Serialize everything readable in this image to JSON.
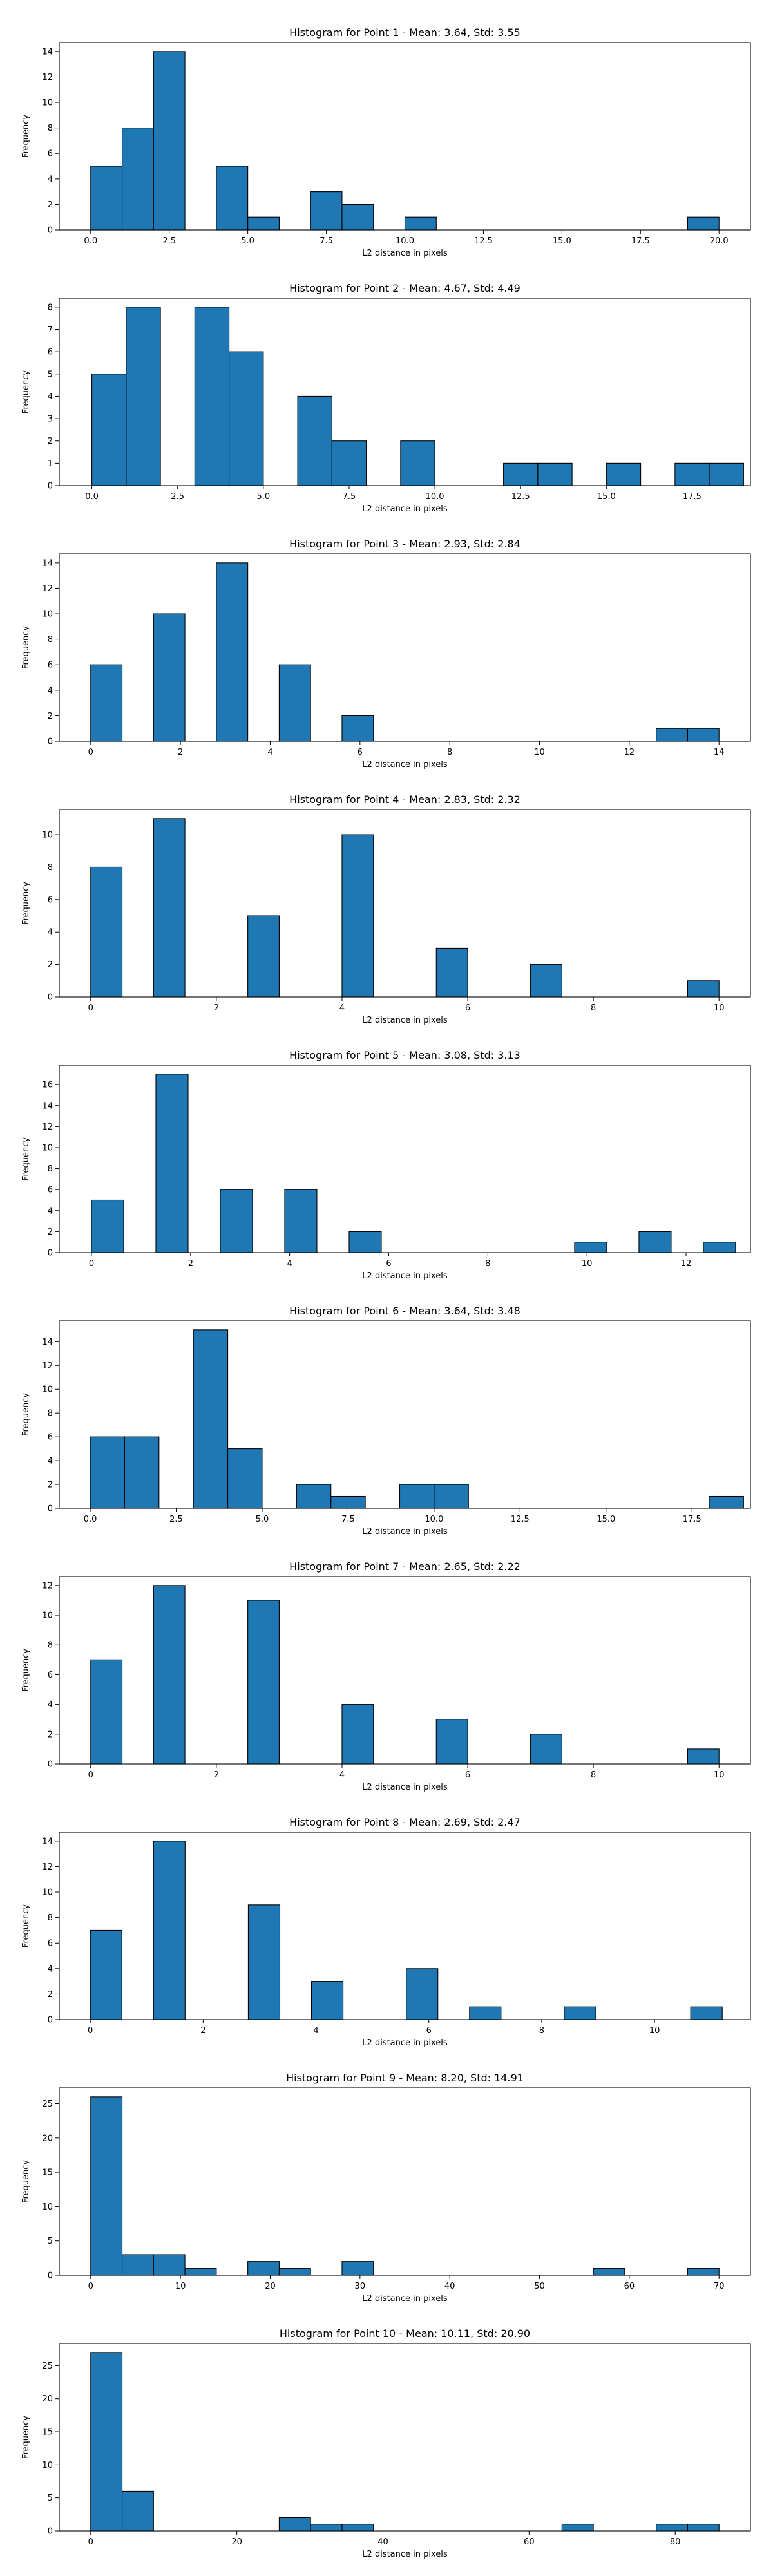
{
  "chart_data": [
    {
      "type": "bar",
      "title": "Histogram for Point 1 - Mean: 3.64, Std: 3.55",
      "xlabel": "L2 distance in pixels",
      "ylabel": "Frequency",
      "xlim": [
        -1.0,
        21.0
      ],
      "ylim": [
        0,
        14.7
      ],
      "xticks": [
        "0.0",
        "2.5",
        "5.0",
        "7.5",
        "10.0",
        "12.5",
        "15.0",
        "17.5",
        "20.0"
      ],
      "xtick_values": [
        0,
        2.5,
        5,
        7.5,
        10,
        12.5,
        15,
        17.5,
        20
      ],
      "yticks": [
        0,
        2,
        4,
        6,
        8,
        10,
        12,
        14
      ],
      "bars": [
        {
          "x0": 0.0,
          "x1": 1.0,
          "value": 5
        },
        {
          "x0": 1.0,
          "x1": 2.0,
          "value": 8
        },
        {
          "x0": 2.0,
          "x1": 3.0,
          "value": 14
        },
        {
          "x0": 4.0,
          "x1": 5.0,
          "value": 5
        },
        {
          "x0": 5.0,
          "x1": 6.0,
          "value": 1
        },
        {
          "x0": 7.0,
          "x1": 8.0,
          "value": 3
        },
        {
          "x0": 8.0,
          "x1": 9.0,
          "value": 2
        },
        {
          "x0": 10.0,
          "x1": 11.0,
          "value": 1
        },
        {
          "x0": 19.0,
          "x1": 20.0,
          "value": 1
        }
      ]
    },
    {
      "type": "bar",
      "title": "Histogram for Point 2 - Mean: 4.67, Std: 4.49",
      "xlabel": "L2 distance in pixels",
      "ylabel": "Frequency",
      "xlim": [
        -0.95,
        19.2
      ],
      "ylim": [
        0,
        8.4
      ],
      "xticks": [
        "0.0",
        "2.5",
        "5.0",
        "7.5",
        "10.0",
        "12.5",
        "15.0",
        "17.5"
      ],
      "xtick_values": [
        0,
        2.5,
        5,
        7.5,
        10,
        12.5,
        15,
        17.5
      ],
      "yticks": [
        0,
        1,
        2,
        3,
        4,
        5,
        6,
        7,
        8
      ],
      "bars": [
        {
          "x0": 0.0,
          "x1": 1.0,
          "value": 5
        },
        {
          "x0": 1.0,
          "x1": 2.0,
          "value": 8
        },
        {
          "x0": 3.0,
          "x1": 4.0,
          "value": 8
        },
        {
          "x0": 4.0,
          "x1": 5.0,
          "value": 6
        },
        {
          "x0": 6.0,
          "x1": 7.0,
          "value": 4
        },
        {
          "x0": 7.0,
          "x1": 8.0,
          "value": 2
        },
        {
          "x0": 9.0,
          "x1": 10.0,
          "value": 2
        },
        {
          "x0": 12.0,
          "x1": 13.0,
          "value": 1
        },
        {
          "x0": 13.0,
          "x1": 14.0,
          "value": 1
        },
        {
          "x0": 15.0,
          "x1": 16.0,
          "value": 1
        },
        {
          "x0": 17.0,
          "x1": 18.0,
          "value": 1
        },
        {
          "x0": 18.0,
          "x1": 19.0,
          "value": 1
        }
      ]
    },
    {
      "type": "bar",
      "title": "Histogram for Point 3 - Mean: 2.93, Std: 2.84",
      "xlabel": "L2 distance in pixels",
      "ylabel": "Frequency",
      "xlim": [
        -0.7,
        14.7
      ],
      "ylim": [
        0,
        14.7
      ],
      "xticks": [
        "0",
        "2",
        "4",
        "6",
        "8",
        "10",
        "12",
        "14"
      ],
      "xtick_values": [
        0,
        2,
        4,
        6,
        8,
        10,
        12,
        14
      ],
      "yticks": [
        0,
        2,
        4,
        6,
        8,
        10,
        12,
        14
      ],
      "bars": [
        {
          "x0": 0.0,
          "x1": 0.7,
          "value": 6
        },
        {
          "x0": 1.4,
          "x1": 2.1,
          "value": 10
        },
        {
          "x0": 2.8,
          "x1": 3.5,
          "value": 14
        },
        {
          "x0": 4.2,
          "x1": 4.9,
          "value": 6
        },
        {
          "x0": 5.6,
          "x1": 6.3,
          "value": 2
        },
        {
          "x0": 12.6,
          "x1": 13.3,
          "value": 1
        },
        {
          "x0": 13.3,
          "x1": 14.0,
          "value": 1
        }
      ]
    },
    {
      "type": "bar",
      "title": "Histogram for Point 4 - Mean: 2.83, Std: 2.32",
      "xlabel": "L2 distance in pixels",
      "ylabel": "Frequency",
      "xlim": [
        -0.5,
        10.5
      ],
      "ylim": [
        0,
        11.55
      ],
      "xticks": [
        "0",
        "2",
        "4",
        "6",
        "8",
        "10"
      ],
      "xtick_values": [
        0,
        2,
        4,
        6,
        8,
        10
      ],
      "yticks": [
        0,
        2,
        4,
        6,
        8,
        10
      ],
      "bars": [
        {
          "x0": 0.0,
          "x1": 0.5,
          "value": 8
        },
        {
          "x0": 1.0,
          "x1": 1.5,
          "value": 11
        },
        {
          "x0": 2.5,
          "x1": 3.0,
          "value": 5
        },
        {
          "x0": 4.0,
          "x1": 4.5,
          "value": 10
        },
        {
          "x0": 5.5,
          "x1": 6.0,
          "value": 3
        },
        {
          "x0": 7.0,
          "x1": 7.5,
          "value": 2
        },
        {
          "x0": 9.5,
          "x1": 10.0,
          "value": 1
        }
      ]
    },
    {
      "type": "bar",
      "title": "Histogram for Point 5 - Mean: 3.08, Std: 3.13",
      "xlabel": "L2 distance in pixels",
      "ylabel": "Frequency",
      "xlim": [
        -0.65,
        13.3
      ],
      "ylim": [
        0,
        17.85
      ],
      "xticks": [
        "0",
        "2",
        "4",
        "6",
        "8",
        "10",
        "12"
      ],
      "xtick_values": [
        0,
        2,
        4,
        6,
        8,
        10,
        12
      ],
      "yticks": [
        0,
        2,
        4,
        6,
        8,
        10,
        12,
        14,
        16
      ],
      "bars": [
        {
          "x0": 0.0,
          "x1": 0.65,
          "value": 5
        },
        {
          "x0": 1.3,
          "x1": 1.95,
          "value": 17
        },
        {
          "x0": 2.6,
          "x1": 3.25,
          "value": 6
        },
        {
          "x0": 3.9,
          "x1": 4.55,
          "value": 6
        },
        {
          "x0": 5.2,
          "x1": 5.85,
          "value": 2
        },
        {
          "x0": 9.75,
          "x1": 10.4,
          "value": 1
        },
        {
          "x0": 11.05,
          "x1": 11.7,
          "value": 2
        },
        {
          "x0": 12.35,
          "x1": 13.0,
          "value": 1
        }
      ]
    },
    {
      "type": "bar",
      "title": "Histogram for Point 6 - Mean: 3.64, Std: 3.48",
      "xlabel": "L2 distance in pixels",
      "ylabel": "Frequency",
      "xlim": [
        -0.9,
        19.2
      ],
      "ylim": [
        0,
        15.75
      ],
      "xticks": [
        "0.0",
        "2.5",
        "5.0",
        "7.5",
        "10.0",
        "12.5",
        "15.0",
        "17.5"
      ],
      "xtick_values": [
        0,
        2.5,
        5,
        7.5,
        10,
        12.5,
        15,
        17.5
      ],
      "yticks": [
        0,
        2,
        4,
        6,
        8,
        10,
        12,
        14
      ],
      "bars": [
        {
          "x0": 0.0,
          "x1": 1.0,
          "value": 6
        },
        {
          "x0": 1.0,
          "x1": 2.0,
          "value": 6
        },
        {
          "x0": 3.0,
          "x1": 4.0,
          "value": 15
        },
        {
          "x0": 4.0,
          "x1": 5.0,
          "value": 5
        },
        {
          "x0": 6.0,
          "x1": 7.0,
          "value": 2
        },
        {
          "x0": 7.0,
          "x1": 8.0,
          "value": 1
        },
        {
          "x0": 9.0,
          "x1": 10.0,
          "value": 2
        },
        {
          "x0": 10.0,
          "x1": 11.0,
          "value": 2
        },
        {
          "x0": 18.0,
          "x1": 19.0,
          "value": 1
        }
      ]
    },
    {
      "type": "bar",
      "title": "Histogram for Point 7 - Mean: 2.65, Std: 2.22",
      "xlabel": "L2 distance in pixels",
      "ylabel": "Frequency",
      "xlim": [
        -0.5,
        10.5
      ],
      "ylim": [
        0,
        12.6
      ],
      "xticks": [
        "0",
        "2",
        "4",
        "6",
        "8",
        "10"
      ],
      "xtick_values": [
        0,
        2,
        4,
        6,
        8,
        10
      ],
      "yticks": [
        0,
        2,
        4,
        6,
        8,
        10,
        12
      ],
      "bars": [
        {
          "x0": 0.0,
          "x1": 0.5,
          "value": 7
        },
        {
          "x0": 1.0,
          "x1": 1.5,
          "value": 12
        },
        {
          "x0": 2.5,
          "x1": 3.0,
          "value": 11
        },
        {
          "x0": 4.0,
          "x1": 4.5,
          "value": 4
        },
        {
          "x0": 5.5,
          "x1": 6.0,
          "value": 3
        },
        {
          "x0": 7.0,
          "x1": 7.5,
          "value": 2
        },
        {
          "x0": 9.5,
          "x1": 10.0,
          "value": 1
        }
      ]
    },
    {
      "type": "bar",
      "title": "Histogram for Point 8 - Mean: 2.69, Std: 2.47",
      "xlabel": "L2 distance in pixels",
      "ylabel": "Frequency",
      "xlim": [
        -0.55,
        11.7
      ],
      "ylim": [
        0,
        14.7
      ],
      "xticks": [
        "0",
        "2",
        "4",
        "6",
        "8",
        "10"
      ],
      "xtick_values": [
        0,
        2,
        4,
        6,
        8,
        10
      ],
      "yticks": [
        0,
        2,
        4,
        6,
        8,
        10,
        12,
        14
      ],
      "bars": [
        {
          "x0": 0.0,
          "x1": 0.56,
          "value": 7
        },
        {
          "x0": 1.12,
          "x1": 1.68,
          "value": 14
        },
        {
          "x0": 2.8,
          "x1": 3.36,
          "value": 9
        },
        {
          "x0": 3.92,
          "x1": 4.48,
          "value": 3
        },
        {
          "x0": 5.6,
          "x1": 6.16,
          "value": 4
        },
        {
          "x0": 6.72,
          "x1": 7.28,
          "value": 1
        },
        {
          "x0": 8.4,
          "x1": 8.96,
          "value": 1
        },
        {
          "x0": 10.64,
          "x1": 11.2,
          "value": 1
        }
      ]
    },
    {
      "type": "bar",
      "title": "Histogram for Point 9 - Mean: 8.20, Std: 14.91",
      "xlabel": "L2 distance in pixels",
      "ylabel": "Frequency",
      "xlim": [
        -3.5,
        73.5
      ],
      "ylim": [
        0,
        27.3
      ],
      "xticks": [
        "0",
        "10",
        "20",
        "30",
        "40",
        "50",
        "60",
        "70"
      ],
      "xtick_values": [
        0,
        10,
        20,
        30,
        40,
        50,
        60,
        70
      ],
      "yticks": [
        0,
        5,
        10,
        15,
        20,
        25
      ],
      "bars": [
        {
          "x0": 0.0,
          "x1": 3.5,
          "value": 26
        },
        {
          "x0": 3.5,
          "x1": 7.0,
          "value": 3
        },
        {
          "x0": 7.0,
          "x1": 10.5,
          "value": 3
        },
        {
          "x0": 10.5,
          "x1": 14.0,
          "value": 1
        },
        {
          "x0": 17.5,
          "x1": 21.0,
          "value": 2
        },
        {
          "x0": 21.0,
          "x1": 24.5,
          "value": 1
        },
        {
          "x0": 28.0,
          "x1": 31.5,
          "value": 2
        },
        {
          "x0": 56.0,
          "x1": 59.5,
          "value": 1
        },
        {
          "x0": 66.5,
          "x1": 70.0,
          "value": 1
        }
      ]
    },
    {
      "type": "bar",
      "title": "Histogram for Point 10 - Mean: 10.11, Std: 20.90",
      "xlabel": "L2 distance in pixels",
      "ylabel": "Frequency",
      "xlim": [
        -4.3,
        90.3
      ],
      "ylim": [
        0,
        28.35
      ],
      "xticks": [
        "0",
        "20",
        "40",
        "60",
        "80"
      ],
      "xtick_values": [
        0,
        20,
        40,
        60,
        80
      ],
      "yticks": [
        0,
        5,
        10,
        15,
        20,
        25
      ],
      "bars": [
        {
          "x0": 0.0,
          "x1": 4.3,
          "value": 27
        },
        {
          "x0": 4.3,
          "x1": 8.6,
          "value": 6
        },
        {
          "x0": 25.8,
          "x1": 30.1,
          "value": 2
        },
        {
          "x0": 30.1,
          "x1": 34.4,
          "value": 1
        },
        {
          "x0": 34.4,
          "x1": 38.7,
          "value": 1
        },
        {
          "x0": 64.5,
          "x1": 68.8,
          "value": 1
        },
        {
          "x0": 77.4,
          "x1": 81.7,
          "value": 1
        },
        {
          "x0": 81.7,
          "x1": 86.0,
          "value": 1
        }
      ]
    }
  ],
  "colors": {
    "bar_fill": "#1f77b4",
    "bar_edge": "#000000",
    "axes": "#000000"
  }
}
